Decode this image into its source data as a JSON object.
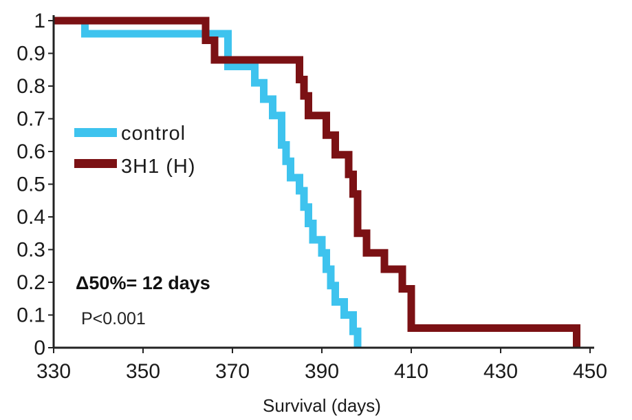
{
  "chart_data": {
    "type": "line",
    "title": "",
    "xlabel": "Survival (days)",
    "ylabel": "",
    "xlim": [
      330,
      450
    ],
    "ylim": [
      0,
      1
    ],
    "x_ticks": [
      330,
      350,
      370,
      390,
      410,
      430,
      450
    ],
    "y_ticks": [
      0,
      0.1,
      0.2,
      0.3,
      0.4,
      0.5,
      0.6,
      0.7,
      0.8,
      0.9,
      1
    ],
    "y_tick_labels": [
      "0",
      "0.1",
      "0.2",
      "0.3",
      "0.4",
      "0.5",
      "0.6",
      "0.7",
      "0.8",
      "0.9",
      "1"
    ],
    "x_tick_labels": [
      "330",
      "350",
      "370",
      "390",
      "410",
      "430",
      "450"
    ],
    "step": true,
    "grid": false,
    "legend_position": "left-middle",
    "series": [
      {
        "name": "control",
        "color": "#3ec3ee",
        "x": [
          330,
          337,
          367,
          369,
          373,
          375,
          377,
          379,
          381,
          382,
          383,
          385,
          386,
          387,
          388,
          390,
          391,
          392,
          393,
          395,
          397,
          398
        ],
        "y": [
          1,
          0.96,
          0.96,
          0.86,
          0.86,
          0.81,
          0.76,
          0.71,
          0.62,
          0.57,
          0.52,
          0.48,
          0.43,
          0.38,
          0.33,
          0.29,
          0.24,
          0.19,
          0.14,
          0.1,
          0.05,
          0
        ]
      },
      {
        "name": "3H1 (H)",
        "color": "#7b1114",
        "x": [
          330,
          364,
          366,
          384,
          385,
          386,
          387,
          390,
          391,
          393,
          394,
          396,
          397,
          398,
          400,
          404,
          406,
          408,
          410,
          447
        ],
        "y": [
          1,
          0.94,
          0.88,
          0.88,
          0.82,
          0.77,
          0.71,
          0.71,
          0.65,
          0.59,
          0.59,
          0.53,
          0.47,
          0.35,
          0.29,
          0.24,
          0.24,
          0.18,
          0.06,
          0
        ]
      }
    ],
    "annotations": {
      "delta": "Δ50%= 12 days",
      "pvalue": "P<0.001"
    }
  }
}
